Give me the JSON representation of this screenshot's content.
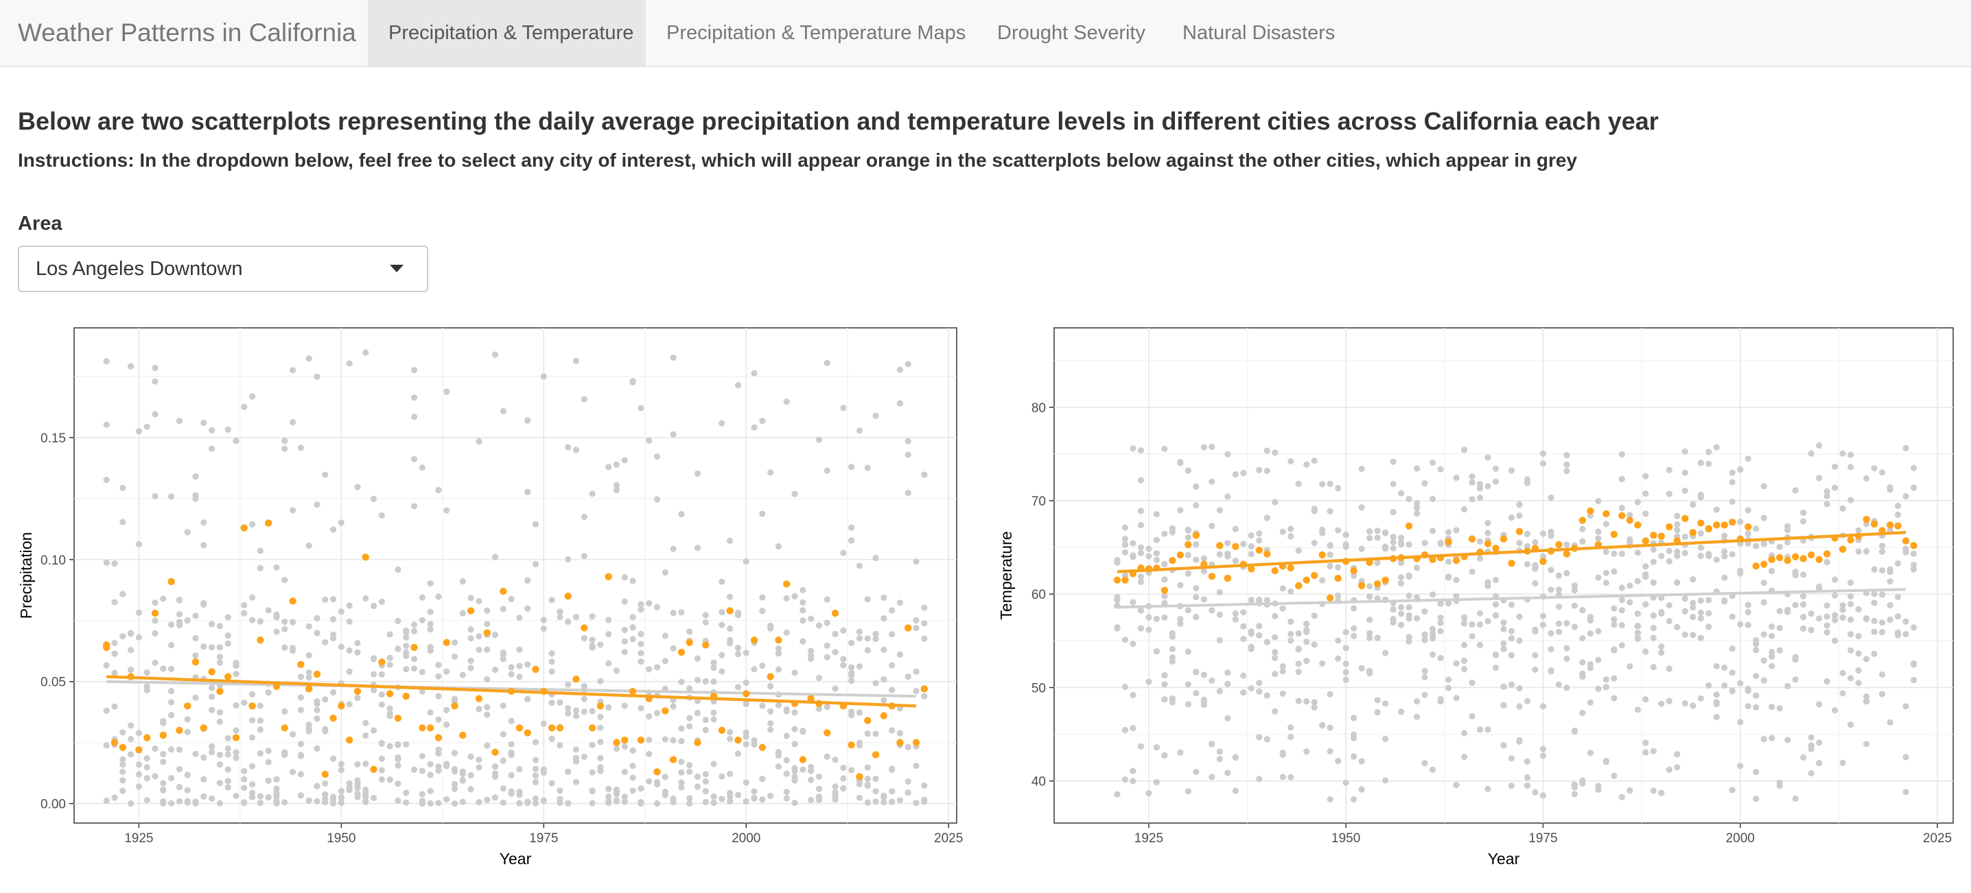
{
  "navbar": {
    "brand": "Weather Patterns in California",
    "tabs": [
      {
        "label": "Precipitation & Temperature",
        "active": true
      },
      {
        "label": "Precipitation & Temperature Maps",
        "active": false
      },
      {
        "label": "Drought Severity",
        "active": false
      },
      {
        "label": "Natural Disasters",
        "active": false
      }
    ]
  },
  "main": {
    "heading": "Below are two scatterplots representing the daily average precipitation and temperature levels in different cities across California each year",
    "instructions": "Instructions: In the dropdown below, feel free to select any city of interest, which will appear orange in the scatterplots below against the other cities, which appear in grey",
    "area_label": "Area",
    "area_selected": "Los Angeles Downtown"
  },
  "colors": {
    "highlight": "#ffa31a",
    "highlight_line": "#f7a21e",
    "others": "#cccccc",
    "panel_bg": "#ebebeb"
  },
  "chart_data": [
    {
      "type": "scatter",
      "xlabel": "Year",
      "ylabel": "Precipitation",
      "xlim": [
        1917,
        2026
      ],
      "ylim": [
        -0.008,
        0.195
      ],
      "xticks": [
        1925,
        1950,
        1975,
        2000,
        2025
      ],
      "yticks": [
        0.0,
        0.05,
        0.1,
        0.15
      ],
      "ytick_labels": [
        "0.00",
        "0.05",
        "0.10",
        "0.15"
      ],
      "grid": true,
      "legend": "none",
      "highlight_trend": [
        [
          1921,
          0.052
        ],
        [
          2021,
          0.04
        ]
      ],
      "others_trend": [
        [
          1921,
          0.05
        ],
        [
          2021,
          0.044
        ]
      ],
      "highlight_points": [
        [
          1921,
          0.064
        ],
        [
          1921,
          0.065
        ],
        [
          1922,
          0.025
        ],
        [
          1923,
          0.023
        ],
        [
          1924,
          0.052
        ],
        [
          1925,
          0.022
        ],
        [
          1926,
          0.027
        ],
        [
          1927,
          0.078
        ],
        [
          1928,
          0.028
        ],
        [
          1929,
          0.091
        ],
        [
          1930,
          0.03
        ],
        [
          1931,
          0.04
        ],
        [
          1932,
          0.058
        ],
        [
          1933,
          0.031
        ],
        [
          1934,
          0.054
        ],
        [
          1935,
          0.046
        ],
        [
          1936,
          0.052
        ],
        [
          1937,
          0.027
        ],
        [
          1938,
          0.113
        ],
        [
          1939,
          0.04
        ],
        [
          1940,
          0.067
        ],
        [
          1941,
          0.115
        ],
        [
          1942,
          0.048
        ],
        [
          1943,
          0.031
        ],
        [
          1944,
          0.083
        ],
        [
          1945,
          0.057
        ],
        [
          1946,
          0.047
        ],
        [
          1947,
          0.053
        ],
        [
          1948,
          0.012
        ],
        [
          1949,
          0.035
        ],
        [
          1950,
          0.04
        ],
        [
          1951,
          0.026
        ],
        [
          1952,
          0.046
        ],
        [
          1953,
          0.101
        ],
        [
          1954,
          0.014
        ],
        [
          1955,
          0.058
        ],
        [
          1956,
          0.045
        ],
        [
          1957,
          0.035
        ],
        [
          1958,
          0.044
        ],
        [
          1959,
          0.064
        ],
        [
          1960,
          0.031
        ],
        [
          1961,
          0.031
        ],
        [
          1962,
          0.027
        ],
        [
          1963,
          0.066
        ],
        [
          1964,
          0.04
        ],
        [
          1965,
          0.028
        ],
        [
          1966,
          0.079
        ],
        [
          1967,
          0.043
        ],
        [
          1968,
          0.07
        ],
        [
          1969,
          0.021
        ],
        [
          1970,
          0.087
        ],
        [
          1971,
          0.046
        ],
        [
          1972,
          0.031
        ],
        [
          1973,
          0.029
        ],
        [
          1974,
          0.055
        ],
        [
          1975,
          0.046
        ],
        [
          1976,
          0.031
        ],
        [
          1977,
          0.031
        ],
        [
          1978,
          0.085
        ],
        [
          1979,
          0.051
        ],
        [
          1980,
          0.072
        ],
        [
          1981,
          0.031
        ],
        [
          1982,
          0.04
        ],
        [
          1983,
          0.093
        ],
        [
          1984,
          0.025
        ],
        [
          1985,
          0.026
        ],
        [
          1986,
          0.046
        ],
        [
          1987,
          0.026
        ],
        [
          1988,
          0.043
        ],
        [
          1989,
          0.013
        ],
        [
          1990,
          0.038
        ],
        [
          1991,
          0.018
        ],
        [
          1992,
          0.062
        ],
        [
          1993,
          0.066
        ],
        [
          1994,
          0.025
        ],
        [
          1995,
          0.065
        ],
        [
          1996,
          0.044
        ],
        [
          1997,
          0.03
        ],
        [
          1998,
          0.079
        ],
        [
          1999,
          0.026
        ],
        [
          2000,
          0.045
        ],
        [
          2001,
          0.067
        ],
        [
          2002,
          0.023
        ],
        [
          2003,
          0.052
        ],
        [
          2004,
          0.067
        ],
        [
          2005,
          0.09
        ],
        [
          2006,
          0.041
        ],
        [
          2007,
          0.018
        ],
        [
          2008,
          0.043
        ],
        [
          2009,
          0.041
        ],
        [
          2010,
          0.029
        ],
        [
          2011,
          0.078
        ],
        [
          2012,
          0.04
        ],
        [
          2013,
          0.024
        ],
        [
          2014,
          0.011
        ],
        [
          2015,
          0.034
        ],
        [
          2016,
          0.02
        ],
        [
          2017,
          0.036
        ],
        [
          2018,
          0.04
        ],
        [
          2019,
          0.025
        ],
        [
          2020,
          0.072
        ],
        [
          2021,
          0.025
        ],
        [
          2022,
          0.047
        ]
      ]
    },
    {
      "type": "scatter",
      "xlabel": "Year",
      "ylabel": "Temperature",
      "xlim": [
        1913,
        2027
      ],
      "ylim": [
        35.5,
        88.5
      ],
      "xticks": [
        1925,
        1950,
        1975,
        2000,
        2025
      ],
      "yticks": [
        40,
        50,
        60,
        70,
        80
      ],
      "ytick_labels": [
        "40",
        "50",
        "60",
        "70",
        "80"
      ],
      "grid": true,
      "legend": "none",
      "highlight_trend": [
        [
          1921,
          62.4
        ],
        [
          2021,
          66.6
        ]
      ],
      "others_trend": [
        [
          1921,
          58.6
        ],
        [
          2021,
          60.5
        ]
      ],
      "highlight_points": [
        [
          1921,
          61.5
        ],
        [
          1922,
          61.5
        ],
        [
          1923,
          62.2
        ],
        [
          1924,
          62.8
        ],
        [
          1925,
          62.7
        ],
        [
          1926,
          62.8
        ],
        [
          1927,
          60.4
        ],
        [
          1928,
          63.6
        ],
        [
          1929,
          64.2
        ],
        [
          1930,
          65.3
        ],
        [
          1931,
          66.3
        ],
        [
          1932,
          63.2
        ],
        [
          1933,
          61.9
        ],
        [
          1934,
          65.2
        ],
        [
          1935,
          61.7
        ],
        [
          1936,
          65.1
        ],
        [
          1937,
          63.2
        ],
        [
          1938,
          62.7
        ],
        [
          1939,
          64.7
        ],
        [
          1940,
          64.3
        ],
        [
          1941,
          62.5
        ],
        [
          1942,
          63.0
        ],
        [
          1943,
          62.8
        ],
        [
          1944,
          60.9
        ],
        [
          1945,
          61.5
        ],
        [
          1946,
          62.0
        ],
        [
          1947,
          64.2
        ],
        [
          1948,
          59.6
        ],
        [
          1949,
          61.7
        ],
        [
          1950,
          63.5
        ],
        [
          1951,
          62.5
        ],
        [
          1952,
          60.9
        ],
        [
          1953,
          63.4
        ],
        [
          1954,
          61.1
        ],
        [
          1955,
          61.5
        ],
        [
          1956,
          63.8
        ],
        [
          1957,
          63.9
        ],
        [
          1958,
          67.3
        ],
        [
          1959,
          63.8
        ],
        [
          1960,
          64.2
        ],
        [
          1961,
          63.7
        ],
        [
          1962,
          63.9
        ],
        [
          1963,
          65.6
        ],
        [
          1964,
          63.6
        ],
        [
          1965,
          64.0
        ],
        [
          1966,
          65.9
        ],
        [
          1967,
          64.5
        ],
        [
          1968,
          65.4
        ],
        [
          1969,
          64.9
        ],
        [
          1970,
          65.9
        ],
        [
          1971,
          63.3
        ],
        [
          1972,
          66.7
        ],
        [
          1973,
          64.6
        ],
        [
          1974,
          64.9
        ],
        [
          1975,
          63.5
        ],
        [
          1976,
          64.6
        ],
        [
          1977,
          65.3
        ],
        [
          1978,
          64.3
        ],
        [
          1979,
          64.9
        ],
        [
          1980,
          67.9
        ],
        [
          1981,
          68.9
        ],
        [
          1982,
          65.3
        ],
        [
          1983,
          68.6
        ],
        [
          1984,
          66.4
        ],
        [
          1985,
          68.4
        ],
        [
          1986,
          67.9
        ],
        [
          1987,
          67.4
        ],
        [
          1988,
          65.7
        ],
        [
          1989,
          66.3
        ],
        [
          1990,
          66.2
        ],
        [
          1991,
          67.2
        ],
        [
          1992,
          65.7
        ],
        [
          1993,
          68.1
        ],
        [
          1994,
          66.6
        ],
        [
          1995,
          67.6
        ],
        [
          1996,
          67.0
        ],
        [
          1997,
          67.4
        ],
        [
          1998,
          67.4
        ],
        [
          1999,
          67.7
        ],
        [
          2000,
          65.9
        ],
        [
          2001,
          67.2
        ],
        [
          2002,
          63.0
        ],
        [
          2003,
          63.2
        ],
        [
          2004,
          63.7
        ],
        [
          2005,
          63.9
        ],
        [
          2006,
          63.6
        ],
        [
          2007,
          64.0
        ],
        [
          2008,
          63.8
        ],
        [
          2009,
          64.2
        ],
        [
          2010,
          63.7
        ],
        [
          2011,
          64.3
        ],
        [
          2012,
          66.0
        ],
        [
          2013,
          64.8
        ],
        [
          2014,
          65.8
        ],
        [
          2015,
          66.2
        ],
        [
          2016,
          68.0
        ],
        [
          2017,
          67.5
        ],
        [
          2018,
          66.8
        ],
        [
          2019,
          67.4
        ],
        [
          2020,
          67.3
        ],
        [
          2021,
          65.7
        ],
        [
          2022,
          65.2
        ]
      ]
    }
  ]
}
